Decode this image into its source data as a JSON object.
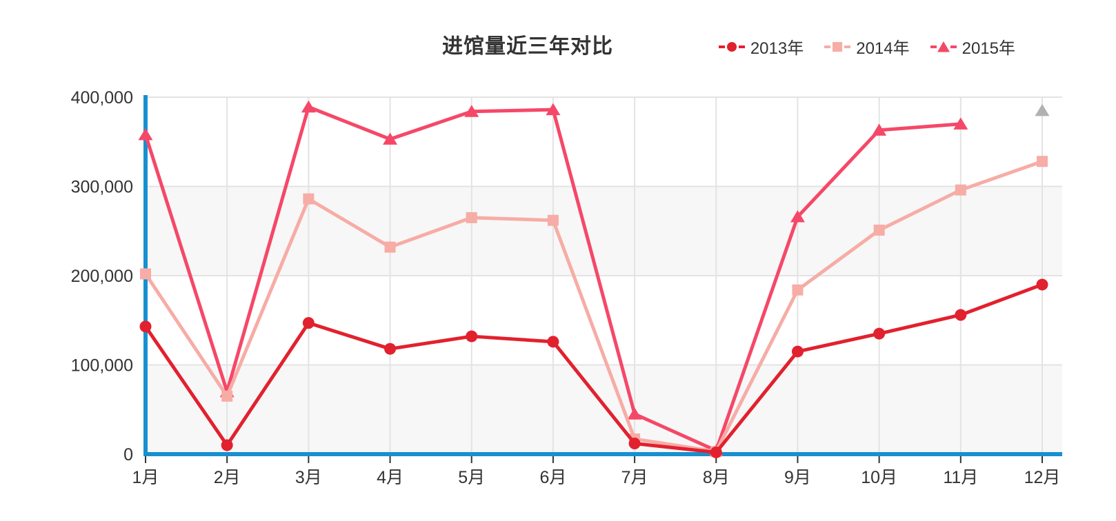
{
  "title": "进馆量近三年对比",
  "legend": {
    "position": "top-right",
    "items": [
      {
        "key": "2013",
        "label": "2013年",
        "symbol": "circle",
        "color": "#e2212e"
      },
      {
        "key": "2014",
        "label": "2014年",
        "symbol": "square",
        "color": "#f7aca6"
      },
      {
        "key": "2015",
        "label": "2015年",
        "symbol": "triangle",
        "color": "#f54868"
      }
    ]
  },
  "chart_data": {
    "type": "line",
    "title": "进馆量近三年对比",
    "categories": [
      "1月",
      "2月",
      "3月",
      "4月",
      "5月",
      "6月",
      "7月",
      "8月",
      "9月",
      "10月",
      "11月",
      "12月"
    ],
    "series": [
      {
        "key": "2013",
        "name": "2013年",
        "symbol": "circle",
        "color": "#e2212e",
        "values": [
          143000,
          10000,
          147000,
          118000,
          132000,
          126000,
          12000,
          2000,
          115000,
          135000,
          156000,
          190000
        ]
      },
      {
        "key": "2014",
        "name": "2014年",
        "symbol": "square",
        "color": "#f7aca6",
        "values": [
          202000,
          65000,
          286000,
          232000,
          265000,
          262000,
          17000,
          3000,
          184000,
          251000,
          296000,
          328000
        ]
      },
      {
        "key": "2015",
        "name": "2015年",
        "symbol": "triangle",
        "color": "#f54868",
        "values": [
          358000,
          70000,
          389000,
          353000,
          384000,
          386000,
          45000,
          4000,
          266000,
          363000,
          370000,
          385000
        ],
        "line_until_index": 10,
        "end_marker": {
          "category": "12月",
          "value": 385000,
          "color": "#b1b1b5",
          "connected_to_line": false
        }
      }
    ],
    "y_ticks": [
      {
        "value": 0,
        "label": "0"
      },
      {
        "value": 100000,
        "label": "100,000"
      },
      {
        "value": 200000,
        "label": "200,000"
      },
      {
        "value": 300000,
        "label": "300,000"
      },
      {
        "value": 400000,
        "label": "400,000"
      }
    ],
    "ylim": [
      0,
      400000
    ],
    "xlabel": "",
    "ylabel": "",
    "grid": true,
    "split_bands": [
      [
        0,
        100000
      ],
      [
        200000,
        300000
      ]
    ],
    "legend_position": "top-right",
    "style": {
      "axis_color": "#1790cf",
      "grid_color": "#e3e3e3",
      "band_color": "#f7f7f7",
      "tick_color": "#333333",
      "text_color": "#333333"
    }
  }
}
